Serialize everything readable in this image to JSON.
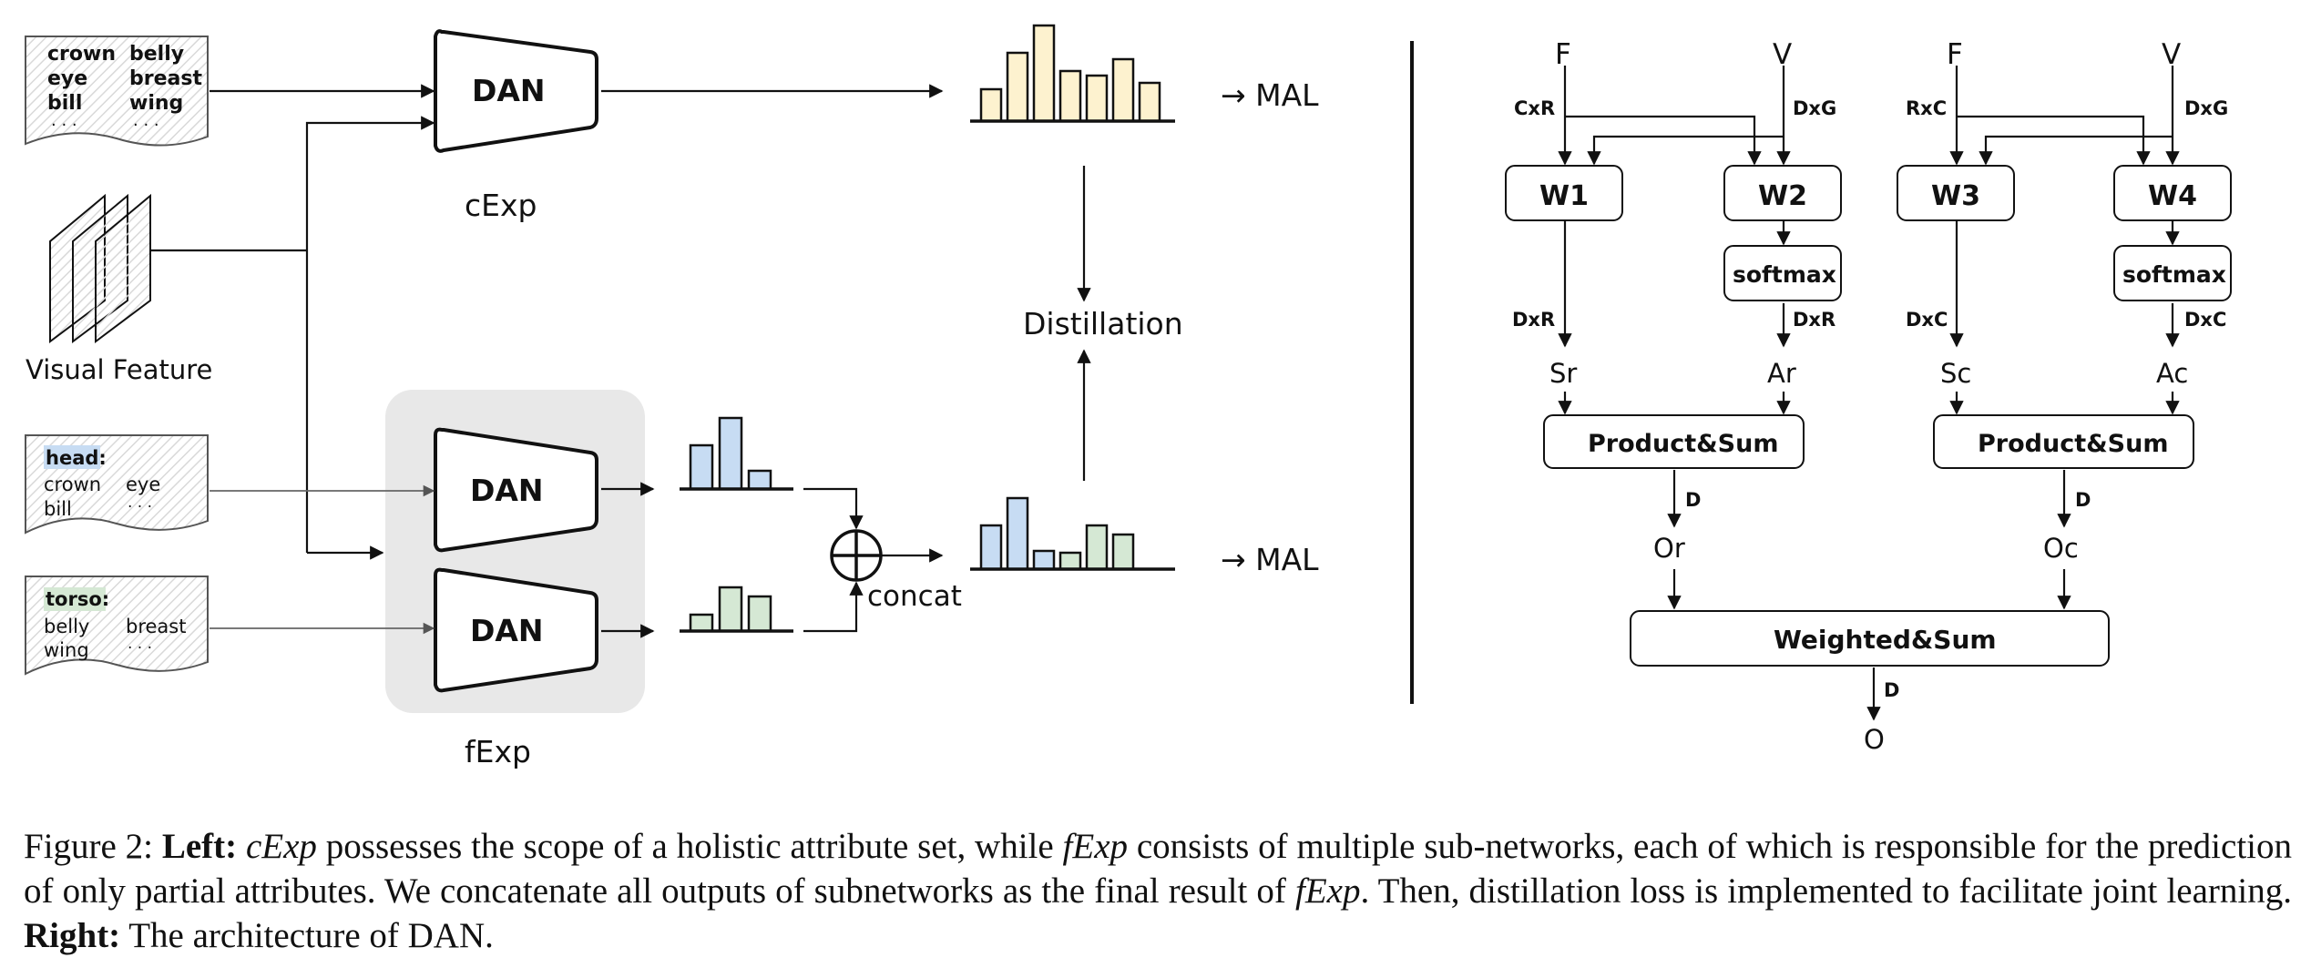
{
  "left": {
    "attr_card_top": {
      "words": [
        "crown",
        "belly",
        "eye",
        "breast",
        "bill",
        "wing",
        "· · ·",
        "· · ·"
      ]
    },
    "visual_feature_label": "Visual Feature",
    "dan_label": "DAN",
    "cexp_label": "cExp",
    "fexp_label": "fExp",
    "head_card": {
      "tag": "head:",
      "words": [
        "crown",
        "eye",
        "bill",
        "· · ·"
      ]
    },
    "torso_card": {
      "tag": "torso:",
      "words": [
        "belly",
        "breast",
        "wing",
        "· · ·"
      ]
    },
    "concat_label": "concat",
    "distillation_label": "Distillation",
    "mal_label": "→ MAL",
    "histograms": {
      "cexp_output": [
        35,
        75,
        105,
        55,
        50,
        68,
        42
      ],
      "head_output": [
        48,
        78,
        20
      ],
      "torso_output": [
        18,
        48,
        38
      ],
      "concat_head": [
        48,
        78,
        20
      ],
      "concat_torso": [
        18,
        48,
        38
      ]
    },
    "colors": {
      "yellow": "#fdf2cf",
      "blue": "#c7dcf3",
      "green": "#d5e8d4",
      "gray_panel": "#e8e8e8"
    }
  },
  "right": {
    "F": "F",
    "V": "V",
    "cxr": "CxR",
    "dxg": "DxG",
    "rxc": "RxC",
    "w1": "W1",
    "w2": "W2",
    "w3": "W3",
    "w4": "W4",
    "softmax": "softmax",
    "dxr": "DxR",
    "dxc": "DxC",
    "sr": "Sr",
    "ar": "Ar",
    "sc": "Sc",
    "ac": "Ac",
    "product_sum": "Product&Sum",
    "d": "D",
    "or": "Or",
    "oc": "Oc",
    "weighted_sum": "Weighted&Sum",
    "o": "O"
  },
  "caption": {
    "figure_label": "Figure 2:",
    "left_label": "Left:",
    "cexp": "cExp",
    "t1": " possesses the scope of a holistic attribute set, while ",
    "fexp": "fExp",
    "t2": " consists of multiple sub-networks, each of which is responsible for the prediction of only partial attributes.  We concatenate all outputs of subnetworks as the final result of ",
    "fexp2": "fExp",
    "t3": ".  Then, distillation loss is implemented to facilitate joint learning. ",
    "right_label": "Right:",
    "t4": " The architecture of DAN."
  }
}
